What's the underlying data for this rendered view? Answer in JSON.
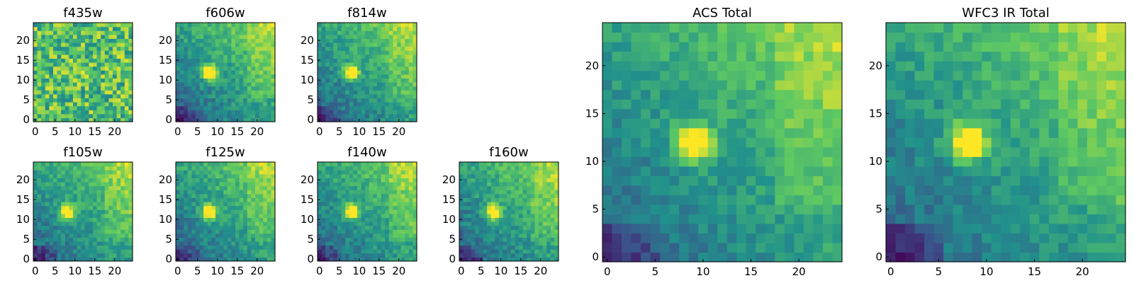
{
  "figure": {
    "colormap": "viridis",
    "colors": [
      "#440154",
      "#3b528b",
      "#21918c",
      "#5ec962",
      "#fde725"
    ],
    "axis_color": "#000000"
  },
  "chart_data": [
    {
      "type": "heatmap",
      "title": "f435w",
      "xlim": [
        0,
        24
      ],
      "ylim": [
        0,
        24
      ],
      "xticks": [
        0,
        5,
        10,
        15,
        20
      ],
      "yticks": [
        0,
        5,
        10,
        15,
        20
      ],
      "source": {
        "x": 9,
        "y": 12,
        "peak": "noisy"
      }
    },
    {
      "type": "heatmap",
      "title": "f606w",
      "xlim": [
        0,
        24
      ],
      "ylim": [
        0,
        24
      ],
      "xticks": [
        0,
        5,
        10,
        15,
        20
      ],
      "yticks": [
        0,
        5,
        10,
        15,
        20
      ],
      "source": {
        "x": 8,
        "y": 12,
        "peak": "bright"
      }
    },
    {
      "type": "heatmap",
      "title": "f814w",
      "xlim": [
        0,
        24
      ],
      "ylim": [
        0,
        24
      ],
      "xticks": [
        0,
        5,
        10,
        15,
        20
      ],
      "yticks": [
        0,
        5,
        10,
        15,
        20
      ],
      "source": {
        "x": 8,
        "y": 12,
        "peak": "bright"
      }
    },
    {
      "type": "heatmap",
      "title": "f105w",
      "xlim": [
        0,
        24
      ],
      "ylim": [
        0,
        24
      ],
      "xticks": [
        0,
        5,
        10,
        15,
        20
      ],
      "yticks": [
        0,
        5,
        10,
        15,
        20
      ],
      "source": {
        "x": 8,
        "y": 12,
        "peak": "bright"
      }
    },
    {
      "type": "heatmap",
      "title": "f125w",
      "xlim": [
        0,
        24
      ],
      "ylim": [
        0,
        24
      ],
      "xticks": [
        0,
        5,
        10,
        15,
        20
      ],
      "yticks": [
        0,
        5,
        10,
        15,
        20
      ],
      "source": {
        "x": 8,
        "y": 12,
        "peak": "bright"
      }
    },
    {
      "type": "heatmap",
      "title": "f140w",
      "xlim": [
        0,
        24
      ],
      "ylim": [
        0,
        24
      ],
      "xticks": [
        0,
        5,
        10,
        15,
        20
      ],
      "yticks": [
        0,
        5,
        10,
        15,
        20
      ],
      "source": {
        "x": 8,
        "y": 12,
        "peak": "bright"
      }
    },
    {
      "type": "heatmap",
      "title": "f160w",
      "xlim": [
        0,
        24
      ],
      "ylim": [
        0,
        24
      ],
      "xticks": [
        0,
        5,
        10,
        15,
        20
      ],
      "yticks": [
        0,
        5,
        10,
        15,
        20
      ],
      "source": {
        "x": 8,
        "y": 12,
        "peak": "bright"
      }
    },
    {
      "type": "heatmap",
      "title": "ACS Total",
      "xlim": [
        0,
        24
      ],
      "ylim": [
        0,
        24
      ],
      "xticks": [
        0,
        5,
        10,
        15,
        20
      ],
      "yticks": [
        0,
        5,
        10,
        15,
        20
      ],
      "source": {
        "x": 9,
        "y": 12,
        "peak": "bright"
      }
    },
    {
      "type": "heatmap",
      "title": "WFC3 IR Total",
      "xlim": [
        0,
        24
      ],
      "ylim": [
        0,
        24
      ],
      "xticks": [
        0,
        5,
        10,
        15,
        20
      ],
      "yticks": [
        0,
        5,
        10,
        15,
        20
      ],
      "source": {
        "x": 8,
        "y": 12,
        "peak": "bright"
      }
    }
  ]
}
